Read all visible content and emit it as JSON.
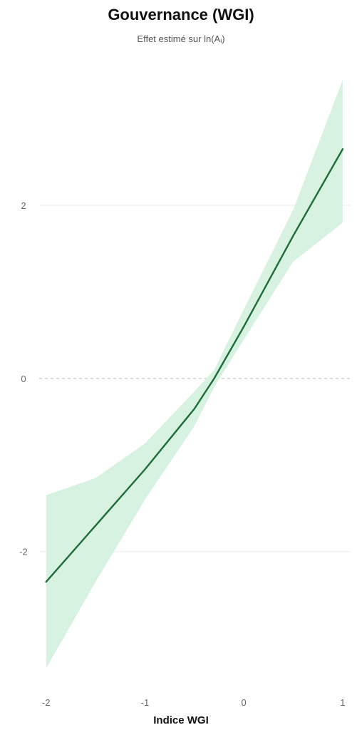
{
  "chart_data": {
    "type": "line",
    "title": "Gouvernance (WGI)",
    "subtitle": "Effet estimé sur ln(Aᵢ)",
    "xlabel": "Indice WGI",
    "ylabel": "",
    "xlim": [
      -2.07,
      1.08
    ],
    "ylim": [
      -3.6,
      3.45
    ],
    "x_ticks": [
      -2,
      -1,
      0,
      1
    ],
    "x_tick_labels": [
      "-2",
      "-1",
      "0",
      "1"
    ],
    "y_ticks": [
      -2,
      0,
      2
    ],
    "y_tick_labels": [
      "-2",
      "0",
      "2"
    ],
    "reference_line": 0,
    "grid": "horizontal",
    "series": [
      {
        "x": [
          -2.0,
          -1.5,
          -1.0,
          -0.5,
          -0.3,
          0.0,
          0.5,
          1.0
        ],
        "y": [
          -2.35,
          -1.7,
          -1.05,
          -0.35,
          0.0,
          0.6,
          1.65,
          2.65
        ],
        "lower": [
          -3.35,
          -2.35,
          -1.4,
          -0.55,
          -0.1,
          0.45,
          1.35,
          1.8
        ],
        "upper": [
          -1.35,
          -1.15,
          -0.75,
          -0.15,
          0.1,
          0.8,
          1.95,
          3.45
        ],
        "color": "#1f6b3a",
        "band_color": "#d7f2e1"
      }
    ]
  }
}
